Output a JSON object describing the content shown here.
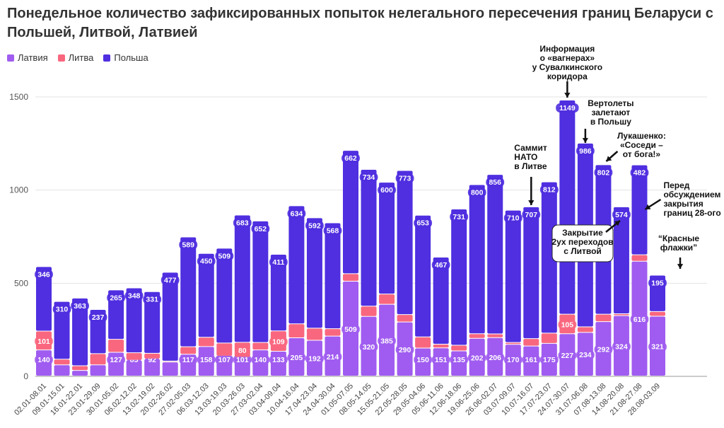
{
  "title": "Понедельное количество зафиксированных попыток нелегального пересечения границ Беларуси с Польшей, Литвой, Латвией",
  "legend": [
    {
      "name": "Латвия",
      "color": "#a05cf0"
    },
    {
      "name": "Литва",
      "color": "#f9677f"
    },
    {
      "name": "Польша",
      "color": "#4f2fe0"
    }
  ],
  "chart_data": {
    "type": "bar",
    "stacked": true,
    "title": "Понедельное количество зафиксированных попыток нелегального пересечения границ Беларуси с Польшей, Литвой, Латвией",
    "xlabel": "",
    "ylabel": "",
    "ylim": [
      0,
      1600
    ],
    "yticks": [
      0,
      500,
      1000,
      1500
    ],
    "grid": true,
    "legend_position": "top-left",
    "categories": [
      "02.01-08.01",
      "09.01-15.01",
      "16.01-22.01",
      "23.01-29.09",
      "30.01-05.02",
      "06.02-12.02",
      "13.02-19.02",
      "20.02-26.02",
      "27.02-05.03",
      "06.03-12.03",
      "13.03-19.03",
      "20.03-26.03",
      "27.03-02.04",
      "03.04-09.04",
      "10.04-16.04",
      "17.04-23.04",
      "24.04-30.04",
      "01.05-07.05",
      "08.05-14.05",
      "15.05-21.05",
      "22.05-28.05",
      "29.05-04.06",
      "05.06-11.06",
      "12.06-18.06",
      "19.06-25.06",
      "26.06-02.07",
      "03.07-09.07",
      "10.07-16.07",
      "17.07-23.07",
      "24.07-30.07",
      "31.07-06.08",
      "07.08-13.08",
      "14.08-20.08",
      "21.08-27.08",
      "28.08-03.09"
    ],
    "series": [
      {
        "name": "Латвия",
        "color": "#a05cf0",
        "values": [
          140,
          60,
          30,
          60,
          127,
          85,
          92,
          75,
          117,
          158,
          107,
          101,
          140,
          133,
          205,
          192,
          214,
          509,
          320,
          385,
          290,
          150,
          151,
          135,
          202,
          206,
          170,
          161,
          175,
          227,
          234,
          292,
          324,
          616,
          321
        ],
        "labels": [
          "140",
          "",
          "",
          "",
          "127",
          "85",
          "92",
          "",
          "117",
          "158",
          "107",
          "101",
          "140",
          "133",
          "205",
          "192",
          "214",
          "509",
          "320",
          "385",
          "290",
          "150",
          "151",
          "135",
          "202",
          "206",
          "170",
          "161",
          "175",
          "227",
          "234",
          "292",
          "324",
          "616",
          "321"
        ]
      },
      {
        "name": "Литва",
        "color": "#f9677f",
        "values": [
          101,
          30,
          25,
          60,
          70,
          40,
          30,
          5,
          40,
          50,
          70,
          80,
          40,
          109,
          75,
          65,
          40,
          40,
          55,
          55,
          40,
          60,
          20,
          30,
          25,
          20,
          10,
          40,
          55,
          105,
          30,
          40,
          10,
          35,
          25
        ],
        "labels": [
          "101",
          "",
          "",
          "",
          "",
          "",
          "",
          "",
          "",
          "",
          "",
          "80",
          "",
          "109",
          "",
          "",
          "",
          "",
          "",
          "",
          "",
          "",
          "",
          "",
          "",
          "",
          "",
          "",
          "",
          "105",
          "",
          "",
          "",
          "",
          ""
        ]
      },
      {
        "name": "Польша",
        "color": "#4f2fe0",
        "values": [
          346,
          310,
          363,
          237,
          265,
          348,
          331,
          477,
          589,
          450,
          509,
          683,
          652,
          411,
          634,
          592,
          568,
          662,
          734,
          600,
          773,
          653,
          467,
          731,
          800,
          856,
          710,
          707,
          812,
          1149,
          986,
          802,
          574,
          482,
          195
        ],
        "labels": [
          "346",
          "310",
          "363",
          "237",
          "265",
          "348",
          "331",
          "477",
          "589",
          "450",
          "509",
          "683",
          "652",
          "411",
          "634",
          "592",
          "568",
          "662",
          "734",
          "600",
          "773",
          "653",
          "467",
          "731",
          "800",
          "856",
          "710",
          "707",
          "812",
          "1149",
          "986",
          "802",
          "574",
          "482",
          "195"
        ]
      }
    ],
    "annotations": [
      {
        "text": [
          "Информация",
          "о «вагнерах»",
          "у Сувалкинского",
          "коридора"
        ],
        "category": "24.07-30.07"
      },
      {
        "text": [
          "Вертолеты",
          "залетают",
          "в Польшу"
        ],
        "category": "31.07-06.08"
      },
      {
        "text": [
          "Лукашенко:",
          "«Соседи –",
          "от бога!»"
        ],
        "category": "07.08-13.08"
      },
      {
        "text": [
          "Саммит",
          "НАТО",
          "в Литве"
        ],
        "category": "10.07-16.07"
      },
      {
        "text": [
          "Перед",
          "обсуждением",
          "закрытия",
          "границ 28-ого"
        ],
        "category": "21.08-27.08"
      },
      {
        "text": [
          "Закрытие",
          "2ух переходов",
          "с Литвой"
        ],
        "category": "14.08-20.08"
      },
      {
        "text": [
          "“Красные",
          "флажки”"
        ],
        "category": "28.08-03.09"
      }
    ]
  }
}
